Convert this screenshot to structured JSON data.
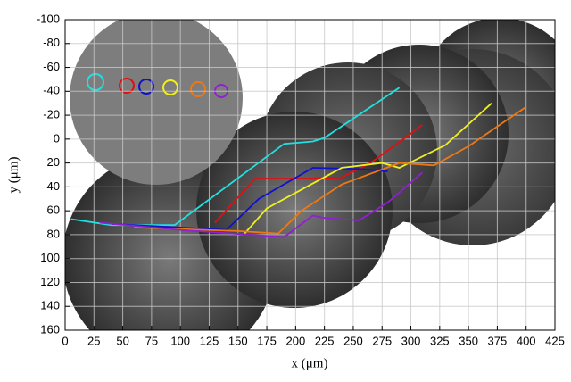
{
  "chart_data": {
    "type": "line",
    "xlabel": "x (μm)",
    "ylabel": "y (μm)",
    "xlim": [
      0,
      425
    ],
    "ylim": [
      -100,
      160
    ],
    "y_inverted": true,
    "grid": true,
    "xticks": [
      0,
      25,
      50,
      75,
      100,
      125,
      150,
      175,
      200,
      225,
      250,
      275,
      300,
      325,
      350,
      375,
      400,
      425
    ],
    "yticks": [
      -100,
      -80,
      -60,
      -40,
      -20,
      0,
      20,
      40,
      60,
      80,
      100,
      120,
      140,
      160
    ],
    "series": [
      {
        "color": "#22e0e0",
        "x": [
          5,
          40,
          95,
          190,
          215,
          225,
          290
        ],
        "values": [
          67,
          72,
          72,
          4,
          2,
          -1,
          -43
        ]
      },
      {
        "color": "#e01010",
        "x": [
          130,
          165,
          210,
          240,
          265,
          295,
          310
        ],
        "values": [
          70,
          33,
          33,
          32,
          20,
          -1,
          -12
        ]
      },
      {
        "color": "#1010d0",
        "x": [
          40,
          140,
          168,
          215,
          255,
          280
        ],
        "values": [
          71,
          76,
          50,
          24,
          25,
          27
        ]
      },
      {
        "color": "#f0f020",
        "x": [
          155,
          175,
          240,
          275,
          290,
          330,
          370
        ],
        "values": [
          80,
          58,
          24,
          20,
          24,
          5,
          -30
        ]
      },
      {
        "color": "#f07810",
        "x": [
          60,
          150,
          185,
          205,
          240,
          290,
          320,
          350,
          400
        ],
        "values": [
          74,
          77,
          79,
          60,
          38,
          20,
          22,
          6,
          -27
        ]
      },
      {
        "color": "#9020d0",
        "x": [
          30,
          100,
          190,
          215,
          225,
          255,
          280,
          310
        ],
        "values": [
          70,
          76,
          82,
          64,
          66,
          68,
          53,
          28
        ]
      }
    ]
  }
}
